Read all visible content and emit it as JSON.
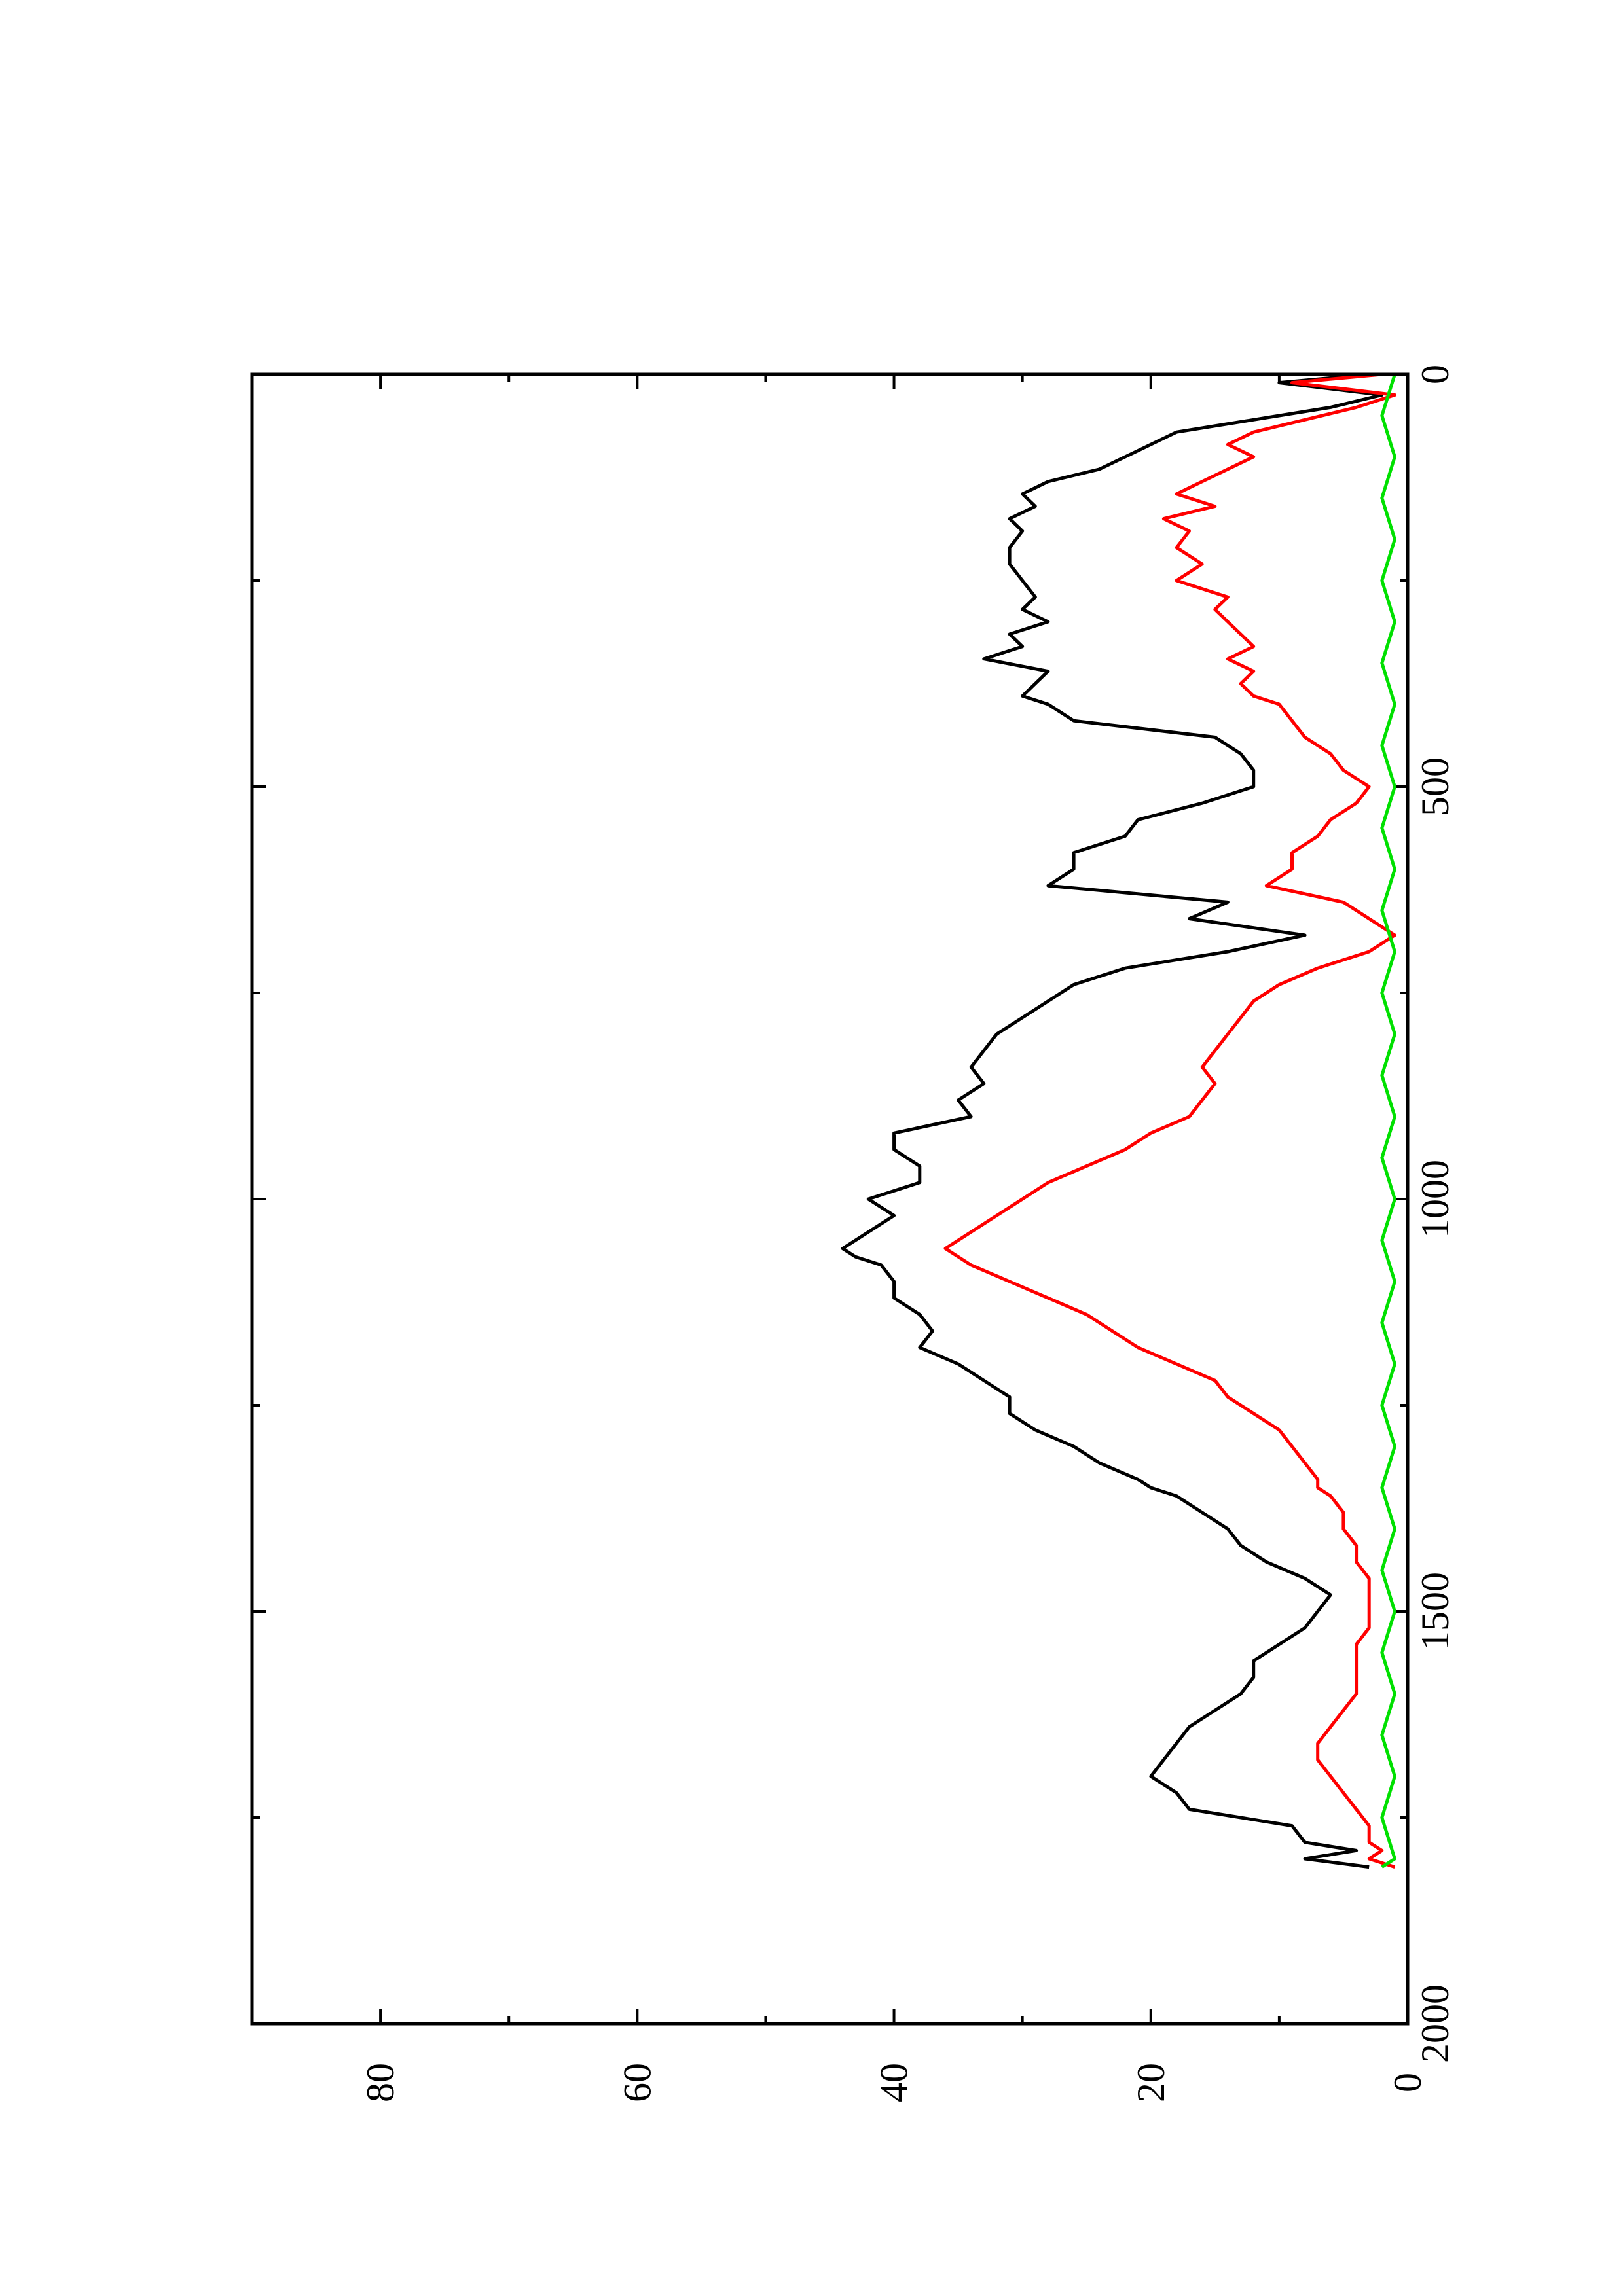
{
  "chart_data": {
    "type": "line",
    "orientation": "rotated-90-ccw",
    "title": "",
    "xlabel": "",
    "ylabel": "",
    "xlim": [
      0,
      2000
    ],
    "ylim": [
      0,
      90
    ],
    "x_ticks": [
      0,
      500,
      1000,
      1500,
      2000
    ],
    "x_minor_ticks": [
      250,
      750,
      1250,
      1750
    ],
    "y_ticks": [
      0,
      20,
      40,
      60,
      80
    ],
    "y_minor_ticks": [
      10,
      30,
      50,
      70
    ],
    "grid": false,
    "legend": "none",
    "series": [
      {
        "color": "#000000",
        "x": [
          0,
          10,
          25,
          40,
          55,
          70,
          85,
          100,
          115,
          130,
          145,
          160,
          175,
          190,
          210,
          230,
          250,
          270,
          285,
          300,
          315,
          330,
          345,
          360,
          375,
          390,
          400,
          420,
          440,
          460,
          480,
          500,
          520,
          540,
          560,
          580,
          600,
          620,
          640,
          660,
          680,
          700,
          720,
          740,
          760,
          780,
          800,
          820,
          840,
          860,
          880,
          900,
          920,
          940,
          960,
          980,
          1000,
          1020,
          1040,
          1060,
          1070,
          1080,
          1100,
          1120,
          1140,
          1160,
          1180,
          1200,
          1220,
          1240,
          1260,
          1280,
          1300,
          1320,
          1340,
          1350,
          1360,
          1380,
          1400,
          1420,
          1440,
          1460,
          1480,
          1500,
          1520,
          1540,
          1560,
          1580,
          1600,
          1620,
          1640,
          1660,
          1680,
          1700,
          1720,
          1740,
          1760,
          1780,
          1790,
          1800,
          1810
        ],
        "y": [
          3,
          10,
          2,
          6,
          12,
          18,
          20,
          22,
          24,
          28,
          30,
          29,
          31,
          30,
          31,
          31,
          30,
          29,
          30,
          28,
          31,
          30,
          33,
          28,
          29,
          30,
          28,
          26,
          15,
          13,
          12,
          12,
          16,
          21,
          22,
          26,
          26,
          28,
          14,
          17,
          8,
          14,
          22,
          26,
          28,
          30,
          32,
          33,
          34,
          33,
          35,
          34,
          40,
          40,
          38,
          38,
          42,
          40,
          42,
          44,
          43,
          41,
          40,
          40,
          38,
          37,
          38,
          35,
          33,
          31,
          31,
          29,
          26,
          24,
          21,
          20,
          18,
          16,
          14,
          13,
          11,
          8,
          6,
          7,
          8,
          10,
          12,
          12,
          13,
          15,
          17,
          18,
          19,
          20,
          18,
          17,
          9,
          8,
          4,
          8,
          3
        ]
      },
      {
        "color": "#ff0000",
        "x": [
          0,
          10,
          25,
          40,
          55,
          70,
          85,
          100,
          115,
          130,
          145,
          160,
          175,
          190,
          210,
          230,
          250,
          270,
          285,
          300,
          315,
          330,
          345,
          360,
          375,
          390,
          400,
          420,
          440,
          460,
          480,
          500,
          520,
          540,
          560,
          580,
          600,
          620,
          640,
          660,
          680,
          700,
          720,
          740,
          760,
          780,
          800,
          820,
          840,
          860,
          880,
          900,
          920,
          940,
          960,
          980,
          1000,
          1020,
          1040,
          1060,
          1070,
          1080,
          1100,
          1120,
          1140,
          1160,
          1180,
          1200,
          1220,
          1240,
          1260,
          1280,
          1300,
          1320,
          1340,
          1350,
          1360,
          1380,
          1400,
          1420,
          1440,
          1460,
          1480,
          1500,
          1520,
          1540,
          1560,
          1580,
          1600,
          1620,
          1640,
          1660,
          1680,
          1700,
          1720,
          1740,
          1760,
          1780,
          1790,
          1800,
          1810
        ],
        "y": [
          2,
          9,
          1,
          4,
          8,
          12,
          14,
          12,
          14,
          16,
          18,
          15,
          19,
          17,
          18,
          16,
          18,
          14,
          15,
          14,
          13,
          12,
          14,
          12,
          13,
          12,
          10,
          9,
          8,
          6,
          5,
          3,
          4,
          6,
          7,
          9,
          9,
          11,
          5,
          3,
          1,
          3,
          7,
          10,
          12,
          13,
          14,
          15,
          16,
          15,
          16,
          17,
          20,
          22,
          25,
          28,
          30,
          32,
          34,
          36,
          35,
          34,
          31,
          28,
          25,
          23,
          21,
          18,
          15,
          14,
          12,
          10,
          9,
          8,
          7,
          7,
          6,
          5,
          5,
          4,
          4,
          3,
          3,
          3,
          3,
          4,
          4,
          4,
          4,
          5,
          6,
          7,
          7,
          6,
          5,
          4,
          3,
          3,
          2,
          3,
          1
        ]
      },
      {
        "color": "#00e000",
        "x": [
          0,
          50,
          100,
          150,
          200,
          250,
          300,
          350,
          400,
          450,
          500,
          550,
          600,
          650,
          700,
          750,
          800,
          850,
          900,
          950,
          1000,
          1050,
          1100,
          1150,
          1200,
          1250,
          1300,
          1350,
          1400,
          1450,
          1500,
          1550,
          1600,
          1650,
          1700,
          1750,
          1800,
          1810
        ],
        "y": [
          1,
          2,
          1,
          2,
          1,
          2,
          1,
          2,
          1,
          2,
          1,
          2,
          1,
          2,
          1,
          2,
          1,
          2,
          1,
          2,
          1,
          2,
          1,
          2,
          1,
          2,
          1,
          2,
          1,
          2,
          1,
          2,
          1,
          2,
          1,
          2,
          1,
          2
        ]
      }
    ]
  }
}
